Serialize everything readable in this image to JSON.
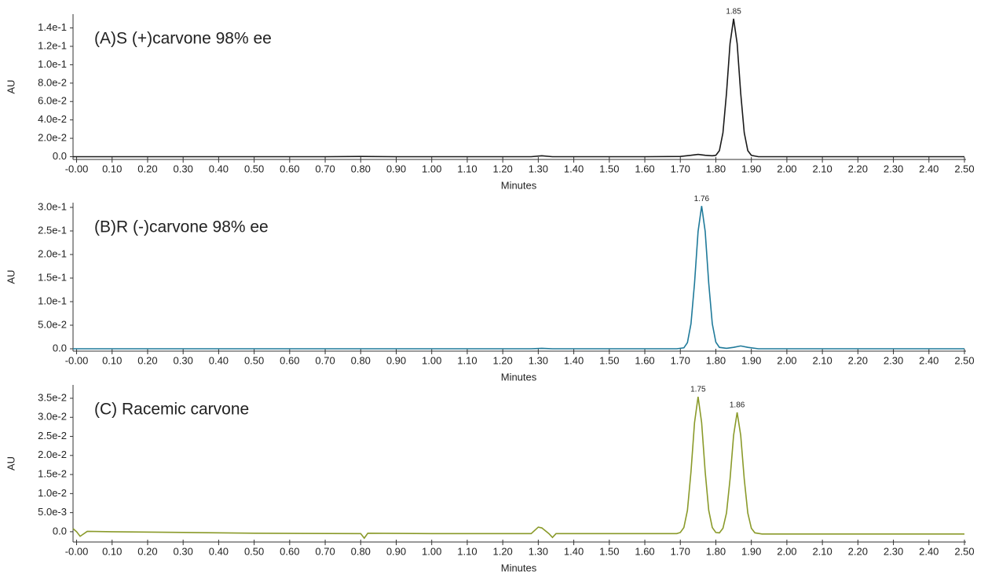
{
  "chart_data": [
    {
      "type": "line",
      "annotation": "(A)S (+)carvone 98% ee",
      "xlabel": "Minutes",
      "ylabel": "AU",
      "color": "#1a1a1a",
      "x": [
        -0.01,
        0.1,
        0.2,
        0.3,
        0.4,
        0.5,
        0.6,
        0.7,
        0.8,
        0.9,
        1.0,
        1.1,
        1.2,
        1.28,
        1.31,
        1.34,
        1.4,
        1.5,
        1.6,
        1.7,
        1.73,
        1.75,
        1.77,
        1.79,
        1.8,
        1.81,
        1.82,
        1.83,
        1.84,
        1.85,
        1.86,
        1.87,
        1.88,
        1.89,
        1.9,
        1.92,
        2.0,
        2.1,
        2.2,
        2.3,
        2.4,
        2.5
      ],
      "values": [
        0,
        0,
        0,
        0,
        0,
        0,
        0,
        0,
        0.0003,
        0,
        0,
        0,
        0,
        0,
        0.001,
        0,
        0,
        0,
        0,
        0.0003,
        0.0015,
        0.0025,
        0.0015,
        0.001,
        0.0015,
        0.0066,
        0.026,
        0.069,
        0.123,
        0.15,
        0.123,
        0.069,
        0.026,
        0.0066,
        0.0015,
        0,
        0,
        0,
        0,
        0,
        0,
        0
      ],
      "peak_labels": [
        1.85
      ],
      "xlim": [
        -0.01,
        2.5
      ],
      "xticks": [
        {
          "value": 0,
          "label": "-0.00"
        },
        {
          "value": 0.1,
          "label": "0.10"
        },
        {
          "value": 0.2,
          "label": "0.20"
        },
        {
          "value": 0.3,
          "label": "0.30"
        },
        {
          "value": 0.4,
          "label": "0.40"
        },
        {
          "value": 0.5,
          "label": "0.50"
        },
        {
          "value": 0.6,
          "label": "0.60"
        },
        {
          "value": 0.7,
          "label": "0.70"
        },
        {
          "value": 0.8,
          "label": "0.80"
        },
        {
          "value": 0.9,
          "label": "0.90"
        },
        {
          "value": 1.0,
          "label": "1.00"
        },
        {
          "value": 1.1,
          "label": "1.10"
        },
        {
          "value": 1.2,
          "label": "1.20"
        },
        {
          "value": 1.3,
          "label": "1.30"
        },
        {
          "value": 1.4,
          "label": "1.40"
        },
        {
          "value": 1.5,
          "label": "1.50"
        },
        {
          "value": 1.6,
          "label": "1.60"
        },
        {
          "value": 1.7,
          "label": "1.70"
        },
        {
          "value": 1.8,
          "label": "1.80"
        },
        {
          "value": 1.9,
          "label": "1.90"
        },
        {
          "value": 2.0,
          "label": "2.00"
        },
        {
          "value": 2.1,
          "label": "2.10"
        },
        {
          "value": 2.2,
          "label": "2.20"
        },
        {
          "value": 2.3,
          "label": "2.30"
        },
        {
          "value": 2.4,
          "label": "2.40"
        },
        {
          "value": 2.5,
          "label": "2.50"
        }
      ],
      "ylim": [
        -0.003,
        0.155
      ],
      "yticks": [
        {
          "value": 0,
          "label": "0.0"
        },
        {
          "value": 0.02,
          "label": "2.0e-2"
        },
        {
          "value": 0.04,
          "label": "4.0e-2"
        },
        {
          "value": 0.06,
          "label": "6.0e-2"
        },
        {
          "value": 0.08,
          "label": "8.0e-2"
        },
        {
          "value": 0.1,
          "label": "1.0e-1"
        },
        {
          "value": 0.12,
          "label": "1.2e-1"
        },
        {
          "value": 0.14,
          "label": "1.4e-1"
        }
      ]
    },
    {
      "type": "line",
      "annotation": "(B)R (-)carvone 98% ee",
      "xlabel": "Minutes",
      "ylabel": "AU",
      "color": "#1f7a9a",
      "x": [
        -0.01,
        0.1,
        0.2,
        0.3,
        0.4,
        0.5,
        0.6,
        0.7,
        0.8,
        0.9,
        1.0,
        1.1,
        1.2,
        1.28,
        1.31,
        1.34,
        1.4,
        1.5,
        1.6,
        1.69,
        1.71,
        1.72,
        1.73,
        1.74,
        1.75,
        1.76,
        1.77,
        1.78,
        1.79,
        1.8,
        1.81,
        1.83,
        1.85,
        1.87,
        1.89,
        1.92,
        2.0,
        2.1,
        2.2,
        2.3,
        2.4,
        2.5
      ],
      "values": [
        0,
        0,
        0,
        0,
        0,
        0,
        0,
        0,
        0,
        0,
        0,
        0,
        0,
        0,
        0.001,
        0,
        0,
        0,
        0,
        0,
        0.002,
        0.013,
        0.053,
        0.139,
        0.249,
        0.303,
        0.249,
        0.139,
        0.053,
        0.014,
        0.003,
        0.001,
        0.003,
        0.006,
        0.003,
        0,
        0,
        0,
        0,
        0,
        0,
        0
      ],
      "peak_labels": [
        1.76
      ],
      "xlim": [
        -0.01,
        2.5
      ],
      "xticks": [
        {
          "value": 0,
          "label": "-0.00"
        },
        {
          "value": 0.1,
          "label": "0.10"
        },
        {
          "value": 0.2,
          "label": "0.20"
        },
        {
          "value": 0.3,
          "label": "0.30"
        },
        {
          "value": 0.4,
          "label": "0.40"
        },
        {
          "value": 0.5,
          "label": "0.50"
        },
        {
          "value": 0.6,
          "label": "0.60"
        },
        {
          "value": 0.7,
          "label": "0.70"
        },
        {
          "value": 0.8,
          "label": "0.80"
        },
        {
          "value": 0.9,
          "label": "0.90"
        },
        {
          "value": 1.0,
          "label": "1.00"
        },
        {
          "value": 1.1,
          "label": "1.10"
        },
        {
          "value": 1.2,
          "label": "1.20"
        },
        {
          "value": 1.3,
          "label": "1.30"
        },
        {
          "value": 1.4,
          "label": "1.40"
        },
        {
          "value": 1.5,
          "label": "1.50"
        },
        {
          "value": 1.6,
          "label": "1.60"
        },
        {
          "value": 1.7,
          "label": "1.70"
        },
        {
          "value": 1.8,
          "label": "1.80"
        },
        {
          "value": 1.9,
          "label": "1.90"
        },
        {
          "value": 2.0,
          "label": "2.00"
        },
        {
          "value": 2.1,
          "label": "2.10"
        },
        {
          "value": 2.2,
          "label": "2.20"
        },
        {
          "value": 2.3,
          "label": "2.30"
        },
        {
          "value": 2.4,
          "label": "2.40"
        },
        {
          "value": 2.5,
          "label": "2.50"
        }
      ],
      "ylim": [
        -0.005,
        0.31
      ],
      "yticks": [
        {
          "value": 0,
          "label": "0.0"
        },
        {
          "value": 0.05,
          "label": "5.0e-2"
        },
        {
          "value": 0.1,
          "label": "1.0e-1"
        },
        {
          "value": 0.15,
          "label": "1.5e-1"
        },
        {
          "value": 0.2,
          "label": "2.0e-1"
        },
        {
          "value": 0.25,
          "label": "2.5e-1"
        },
        {
          "value": 0.3,
          "label": "3.0e-1"
        }
      ]
    },
    {
      "type": "line",
      "annotation": "(C) Racemic carvone",
      "xlabel": "Minutes",
      "ylabel": "AU",
      "color": "#8a9a2a",
      "x": [
        -0.01,
        0,
        0.01,
        0.03,
        0.1,
        0.3,
        0.5,
        0.8,
        0.81,
        0.82,
        1.0,
        1.28,
        1.3,
        1.31,
        1.33,
        1.34,
        1.35,
        1.5,
        1.6,
        1.69,
        1.7,
        1.71,
        1.72,
        1.73,
        1.74,
        1.75,
        1.76,
        1.77,
        1.78,
        1.79,
        1.8,
        1.81,
        1.82,
        1.83,
        1.84,
        1.85,
        1.86,
        1.87,
        1.88,
        1.89,
        1.9,
        1.91,
        1.93,
        2.0,
        2.5
      ],
      "values": [
        0.0008,
        0,
        -0.0012,
        0.0001,
        0,
        -0.0002,
        -0.0004,
        -0.0005,
        -0.0017,
        -0.0004,
        -0.0005,
        -0.0005,
        0.0012,
        0.001,
        -0.0005,
        -0.0015,
        -0.0005,
        -0.0005,
        -0.0005,
        -0.0005,
        -0.0002,
        0.0011,
        0.0056,
        0.0157,
        0.0286,
        0.0354,
        0.0286,
        0.0157,
        0.0056,
        0.0011,
        -0.0002,
        -0.0003,
        0.0009,
        0.0049,
        0.0138,
        0.0253,
        0.0313,
        0.0253,
        0.0138,
        0.0049,
        0.0009,
        -0.0003,
        -0.0006,
        -0.0006,
        -0.0006
      ],
      "peak_labels": [
        1.75,
        1.86
      ],
      "xlim": [
        -0.01,
        2.5
      ],
      "xticks": [
        {
          "value": 0,
          "label": "-0.00"
        },
        {
          "value": 0.1,
          "label": "0.10"
        },
        {
          "value": 0.2,
          "label": "0.20"
        },
        {
          "value": 0.3,
          "label": "0.30"
        },
        {
          "value": 0.4,
          "label": "0.40"
        },
        {
          "value": 0.5,
          "label": "0.50"
        },
        {
          "value": 0.6,
          "label": "0.60"
        },
        {
          "value": 0.7,
          "label": "0.70"
        },
        {
          "value": 0.8,
          "label": "0.80"
        },
        {
          "value": 0.9,
          "label": "0.90"
        },
        {
          "value": 1.0,
          "label": "1.00"
        },
        {
          "value": 1.1,
          "label": "1.10"
        },
        {
          "value": 1.2,
          "label": "1.20"
        },
        {
          "value": 1.3,
          "label": "1.30"
        },
        {
          "value": 1.4,
          "label": "1.40"
        },
        {
          "value": 1.5,
          "label": "1.50"
        },
        {
          "value": 1.6,
          "label": "1.60"
        },
        {
          "value": 1.7,
          "label": "1.70"
        },
        {
          "value": 1.8,
          "label": "1.80"
        },
        {
          "value": 1.9,
          "label": "1.90"
        },
        {
          "value": 2.0,
          "label": "2.00"
        },
        {
          "value": 2.1,
          "label": "2.10"
        },
        {
          "value": 2.2,
          "label": "2.20"
        },
        {
          "value": 2.3,
          "label": "2.30"
        },
        {
          "value": 2.4,
          "label": "2.40"
        },
        {
          "value": 2.5,
          "label": "2.50"
        }
      ],
      "ylim": [
        -0.0027,
        0.0385
      ],
      "yticks": [
        {
          "value": 0,
          "label": "0.0"
        },
        {
          "value": 0.005,
          "label": "5.0e-3"
        },
        {
          "value": 0.01,
          "label": "1.0e-2"
        },
        {
          "value": 0.015,
          "label": "1.5e-2"
        },
        {
          "value": 0.02,
          "label": "2.0e-2"
        },
        {
          "value": 0.025,
          "label": "2.5e-2"
        },
        {
          "value": 0.03,
          "label": "3.0e-2"
        },
        {
          "value": 0.035,
          "label": "3.5e-2"
        }
      ]
    }
  ]
}
